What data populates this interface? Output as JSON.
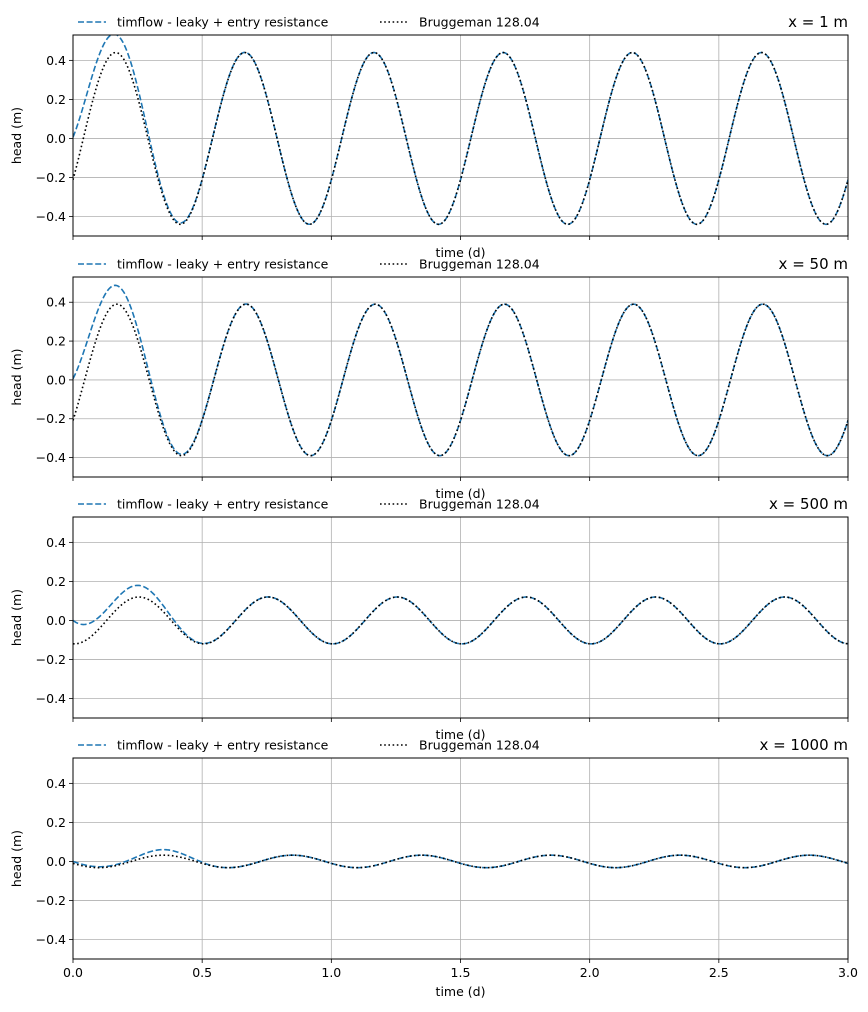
{
  "chart_data": [
    {
      "type": "line",
      "title": "x = 1 m",
      "xlabel": "time (d)",
      "ylabel": "head (m)",
      "xlim": [
        0,
        3.0
      ],
      "ylim": [
        -0.5,
        0.53
      ],
      "xticks": [
        0.0,
        0.5,
        1.0,
        1.5,
        2.0,
        2.5,
        3.0
      ],
      "yticks": [
        -0.4,
        -0.2,
        0.0,
        0.2,
        0.4
      ],
      "grid": true,
      "show_xticklabels": false,
      "legend": {
        "position": "above-left",
        "ncol": 2
      },
      "period_d": 0.5,
      "series": [
        {
          "name": "timflow - leaky + entry resistance",
          "style": "dashed",
          "color": "#1f77b4",
          "amplitude": 0.44,
          "peak_time": 0.165,
          "starts_at_zero": true,
          "first_peak": 0.48,
          "first_trough": -0.42
        },
        {
          "name": "Bruggeman 128.04",
          "style": "dotted",
          "color": "#000000",
          "amplitude": 0.44,
          "peak_time": 0.165
        }
      ]
    },
    {
      "type": "line",
      "title": "x = 50 m",
      "xlabel": "time (d)",
      "ylabel": "head (m)",
      "xlim": [
        0,
        3.0
      ],
      "ylim": [
        -0.5,
        0.53
      ],
      "xticks": [
        0.0,
        0.5,
        1.0,
        1.5,
        2.0,
        2.5,
        3.0
      ],
      "yticks": [
        -0.4,
        -0.2,
        0.0,
        0.2,
        0.4
      ],
      "grid": true,
      "show_xticklabels": false,
      "legend": {
        "position": "above-left",
        "ncol": 2
      },
      "period_d": 0.5,
      "series": [
        {
          "name": "timflow - leaky + entry resistance",
          "style": "dashed",
          "color": "#1f77b4",
          "amplitude": 0.39,
          "peak_time": 0.17,
          "starts_at_zero": true,
          "first_peak": 0.435,
          "first_trough": -0.37
        },
        {
          "name": "Bruggeman 128.04",
          "style": "dotted",
          "color": "#000000",
          "amplitude": 0.39,
          "peak_time": 0.17
        }
      ]
    },
    {
      "type": "line",
      "title": "x = 500 m",
      "xlabel": "time (d)",
      "ylabel": "head (m)",
      "xlim": [
        0,
        3.0
      ],
      "ylim": [
        -0.5,
        0.53
      ],
      "xticks": [
        0.0,
        0.5,
        1.0,
        1.5,
        2.0,
        2.5,
        3.0
      ],
      "yticks": [
        -0.4,
        -0.2,
        0.0,
        0.2,
        0.4
      ],
      "grid": true,
      "show_xticklabels": false,
      "legend": {
        "position": "above-left",
        "ncol": 2
      },
      "period_d": 0.5,
      "series": [
        {
          "name": "timflow - leaky + entry resistance",
          "style": "dashed",
          "color": "#1f77b4",
          "amplitude": 0.12,
          "peak_time": 0.255,
          "starts_at_zero": true,
          "first_peak": 0.165,
          "first_trough": -0.1
        },
        {
          "name": "Bruggeman 128.04",
          "style": "dotted",
          "color": "#000000",
          "amplitude": 0.12,
          "peak_time": 0.255
        }
      ]
    },
    {
      "type": "line",
      "title": "x = 1000 m",
      "xlabel": "time (d)",
      "ylabel": "head (m)",
      "xlim": [
        0,
        3.0
      ],
      "ylim": [
        -0.5,
        0.53
      ],
      "xticks": [
        0.0,
        0.5,
        1.0,
        1.5,
        2.0,
        2.5,
        3.0
      ],
      "yticks": [
        -0.4,
        -0.2,
        0.0,
        0.2,
        0.4
      ],
      "grid": true,
      "show_xticklabels": true,
      "legend": {
        "position": "above-left",
        "ncol": 2
      },
      "period_d": 0.5,
      "series": [
        {
          "name": "timflow - leaky + entry resistance",
          "style": "dashed",
          "color": "#1f77b4",
          "amplitude": 0.032,
          "peak_time": 0.35,
          "starts_at_zero": true,
          "first_peak": 0.06,
          "first_trough": -0.015
        },
        {
          "name": "Bruggeman 128.04",
          "style": "dotted",
          "color": "#000000",
          "amplitude": 0.032,
          "peak_time": 0.35
        }
      ]
    }
  ],
  "xtick_labels": [
    "0.0",
    "0.5",
    "1.0",
    "1.5",
    "2.0",
    "2.5",
    "3.0"
  ],
  "ytick_labels": [
    "−0.4",
    "−0.2",
    "0.0",
    "0.2",
    "0.4"
  ]
}
